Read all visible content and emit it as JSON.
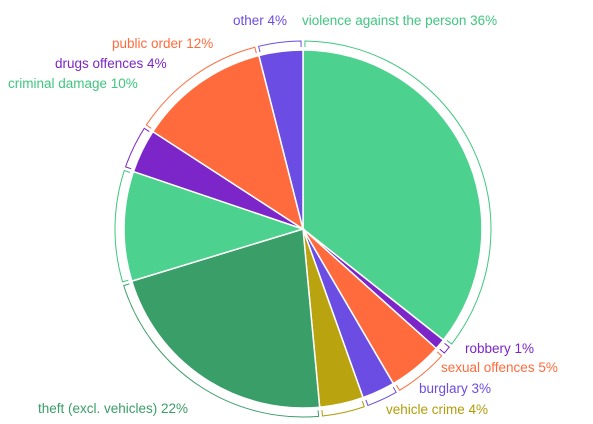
{
  "chart_data": {
    "type": "pie",
    "title": "",
    "slices": [
      {
        "label": "violence against the person",
        "percent_text": "36%",
        "value": 36,
        "color": "#4cd28e"
      },
      {
        "label": "robbery",
        "percent_text": "1%",
        "value": 1,
        "color": "#7c25c9"
      },
      {
        "label": "sexual offences",
        "percent_text": "5%",
        "value": 5,
        "color": "#ff6b3d"
      },
      {
        "label": "burglary",
        "percent_text": "3%",
        "value": 3,
        "color": "#6c4de3"
      },
      {
        "label": "vehicle crime",
        "percent_text": "4%",
        "value": 4,
        "color": "#b9a30e"
      },
      {
        "label": "theft (excl. vehicles)",
        "percent_text": "22%",
        "value": 22,
        "color": "#3a9e68"
      },
      {
        "label": "criminal damage",
        "percent_text": "10%",
        "value": 10,
        "color": "#4cd28e"
      },
      {
        "label": "drugs offences",
        "percent_text": "4%",
        "value": 4,
        "color": "#7c25c9"
      },
      {
        "label": "public order",
        "percent_text": "12%",
        "value": 12,
        "color": "#ff6b3d"
      },
      {
        "label": "other",
        "percent_text": "4%",
        "value": 4,
        "color": "#6c4de3"
      }
    ],
    "label_colors": {
      "violence against the person": "#3fc77f",
      "robbery": "#7c25c9",
      "sexual offences": "#ff6b3d",
      "burglary": "#6c4de3",
      "vehicle crime": "#b39c0a",
      "theft (excl. vehicles)": "#3a9e68",
      "criminal damage": "#3fc77f",
      "drugs offences": "#7c25c9",
      "public order": "#ff6b3d",
      "other": "#6c4de3"
    },
    "legend": "none"
  }
}
